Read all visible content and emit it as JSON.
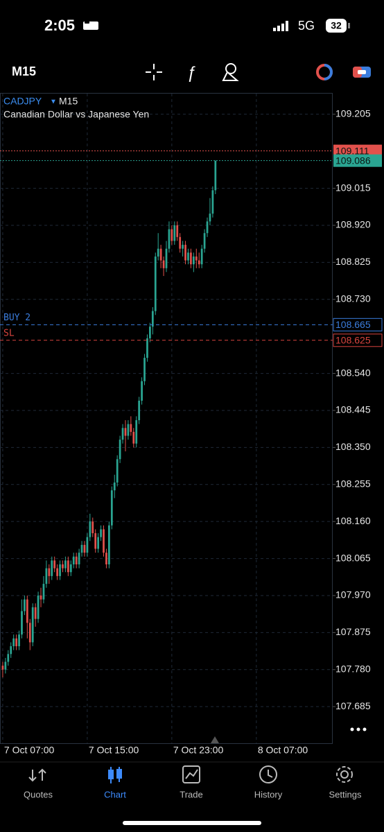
{
  "status_bar": {
    "time": "2:05",
    "network": "5G",
    "battery": "32"
  },
  "toolbar": {
    "timeframe": "M15"
  },
  "chart_data": {
    "type": "candlestick",
    "symbol": "CADJPY",
    "timeframe": "M15",
    "subtitle": "Canadian Dollar vs Japanese Yen",
    "open": [
      107.79,
      107.78,
      107.8,
      107.82,
      107.84,
      107.86,
      107.84,
      107.87,
      107.93,
      107.96,
      107.9,
      107.85,
      107.94,
      107.91,
      107.97,
      107.96,
      108.0,
      108.04,
      108.02,
      108.06,
      108.04,
      108.02,
      108.05,
      108.04,
      108.06,
      108.03,
      108.05,
      108.07,
      108.05,
      108.08,
      108.1,
      108.08,
      108.12,
      108.16,
      108.13,
      108.09,
      108.12,
      108.14,
      108.08,
      108.05,
      108.15,
      108.24,
      108.26,
      108.32,
      108.37,
      108.4,
      108.38,
      108.41,
      108.39,
      108.36,
      108.42,
      108.47,
      108.52,
      108.58,
      108.63,
      108.66,
      108.7,
      108.84,
      108.86,
      108.83,
      108.81,
      108.86,
      108.91,
      108.88,
      108.92,
      108.89,
      108.86,
      108.87,
      108.83,
      108.85,
      108.82,
      108.84,
      108.83,
      108.82,
      108.86,
      108.9,
      108.93,
      108.95,
      109.01
    ],
    "high": [
      107.8,
      107.81,
      107.83,
      107.85,
      107.87,
      107.87,
      107.88,
      107.96,
      107.97,
      107.97,
      107.91,
      107.95,
      107.95,
      107.98,
      107.99,
      108.02,
      108.06,
      108.05,
      108.07,
      108.07,
      108.05,
      108.06,
      108.06,
      108.07,
      108.07,
      108.06,
      108.08,
      108.08,
      108.09,
      108.11,
      108.11,
      108.13,
      108.18,
      108.17,
      108.14,
      108.13,
      108.15,
      108.15,
      108.09,
      108.16,
      108.25,
      108.28,
      108.33,
      108.38,
      108.41,
      108.42,
      108.42,
      108.43,
      108.4,
      108.43,
      108.48,
      108.53,
      108.59,
      108.64,
      108.67,
      108.71,
      108.85,
      108.9,
      108.87,
      108.84,
      108.88,
      108.93,
      108.92,
      108.93,
      108.93,
      108.9,
      108.88,
      108.88,
      108.86,
      108.86,
      108.85,
      108.86,
      108.85,
      108.87,
      108.91,
      108.94,
      108.99,
      109.02,
      109.086
    ],
    "low": [
      107.76,
      107.77,
      107.79,
      107.81,
      107.83,
      107.83,
      107.83,
      107.86,
      107.92,
      107.86,
      107.83,
      107.84,
      107.89,
      107.9,
      107.94,
      107.95,
      107.99,
      108.0,
      108.01,
      108.03,
      108.01,
      108.01,
      108.03,
      108.03,
      108.02,
      108.02,
      108.04,
      108.04,
      108.04,
      108.07,
      108.07,
      108.07,
      108.11,
      108.12,
      108.08,
      108.08,
      108.11,
      108.07,
      108.04,
      108.04,
      108.14,
      108.22,
      108.25,
      108.31,
      108.36,
      108.34,
      108.37,
      108.38,
      108.35,
      108.35,
      108.41,
      108.46,
      108.51,
      108.57,
      108.62,
      108.64,
      108.69,
      108.83,
      108.81,
      108.79,
      108.8,
      108.85,
      108.87,
      108.87,
      108.88,
      108.85,
      108.84,
      108.82,
      108.82,
      108.81,
      108.8,
      108.81,
      108.81,
      108.81,
      108.85,
      108.89,
      108.92,
      108.94,
      109.0
    ],
    "close": [
      107.78,
      107.8,
      107.82,
      107.84,
      107.86,
      107.84,
      107.87,
      107.93,
      107.96,
      107.9,
      107.85,
      107.94,
      107.91,
      107.97,
      107.96,
      108.0,
      108.04,
      108.02,
      108.06,
      108.04,
      108.02,
      108.05,
      108.04,
      108.06,
      108.03,
      108.05,
      108.07,
      108.05,
      108.08,
      108.1,
      108.08,
      108.12,
      108.16,
      108.13,
      108.09,
      108.12,
      108.14,
      108.08,
      108.05,
      108.15,
      108.24,
      108.26,
      108.32,
      108.37,
      108.4,
      108.38,
      108.41,
      108.39,
      108.36,
      108.42,
      108.47,
      108.52,
      108.58,
      108.63,
      108.66,
      108.7,
      108.84,
      108.86,
      108.83,
      108.81,
      108.86,
      108.91,
      108.88,
      108.92,
      108.89,
      108.86,
      108.87,
      108.83,
      108.85,
      108.82,
      108.84,
      108.83,
      108.82,
      108.86,
      108.9,
      108.93,
      108.95,
      109.01,
      109.086
    ],
    "up_color": "#2aa592",
    "down_color": "#e2514c",
    "xlim": [
      -1,
      121
    ],
    "xticks": [
      {
        "value": 0,
        "label": "7 Oct 07:00"
      },
      {
        "value": 31,
        "label": "7 Oct 15:00"
      },
      {
        "value": 62,
        "label": "7 Oct 23:00"
      },
      {
        "value": 93,
        "label": "8 Oct 07:00"
      }
    ],
    "ylim": [
      107.591,
      109.258
    ],
    "yticks": [
      109.205,
      109.015,
      {
        "value": 108.92,
        "label": "108.920"
      },
      108.825,
      {
        "value": 108.73,
        "label": "108.730"
      },
      {
        "value": 108.54,
        "label": "108.540"
      },
      108.445,
      {
        "value": 108.35,
        "label": "108.350"
      },
      108.255,
      {
        "value": 108.16,
        "label": "108.160"
      },
      108.065,
      {
        "value": 107.97,
        "label": "107.970"
      },
      107.875,
      {
        "value": 107.78,
        "label": "107.780"
      },
      107.685
    ],
    "grid": true,
    "levels": [
      {
        "value": 109.111,
        "color": "#e2514c",
        "style": "filled"
      },
      {
        "value": 109.086,
        "color": "#2aa592",
        "style": "filled"
      },
      {
        "name": "BUY 2",
        "value": 108.665,
        "color": "#3b7ddd",
        "style": "outline"
      },
      {
        "name": "SL",
        "value": 108.625,
        "color": "#d9453f",
        "style": "outline"
      }
    ]
  },
  "tabs": [
    "Quotes",
    "Chart",
    "Trade",
    "History",
    "Settings"
  ]
}
